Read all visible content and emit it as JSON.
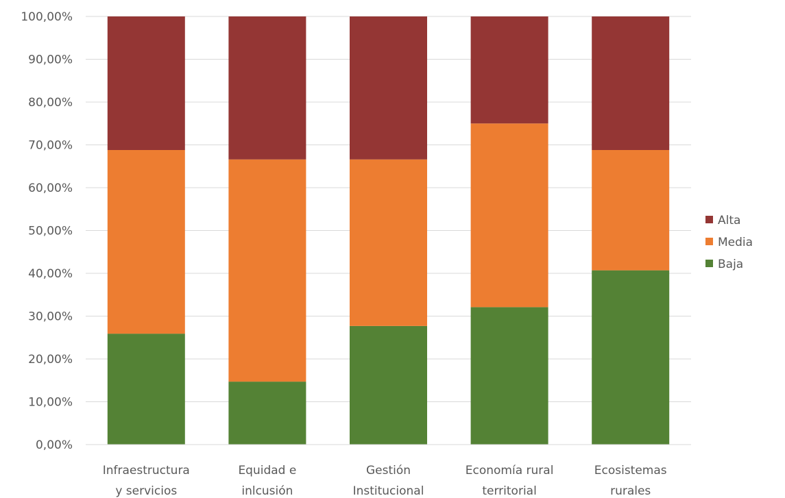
{
  "chart_data": {
    "type": "bar",
    "stacked": true,
    "categories": [
      [
        "Infraestructura",
        "y servicios"
      ],
      [
        "Equidad e",
        "inlcusión"
      ],
      [
        "Gestión",
        "Institucional"
      ],
      [
        "Economía rural",
        "territorial"
      ],
      [
        "Ecosistemas",
        "rurales"
      ]
    ],
    "series": [
      {
        "name": "Baja",
        "color": "#548235",
        "values": [
          25.9,
          14.7,
          27.7,
          32.1,
          40.7
        ]
      },
      {
        "name": "Media",
        "color": "#ED7D31",
        "values": [
          42.9,
          51.9,
          38.9,
          42.9,
          28.1
        ]
      },
      {
        "name": "Alta",
        "color": "#943634",
        "values": [
          31.2,
          33.4,
          33.4,
          25.0,
          31.2
        ]
      }
    ],
    "ylim": [
      0,
      100
    ],
    "yticks": [
      "0,00%",
      "10,00%",
      "20,00%",
      "30,00%",
      "40,00%",
      "50,00%",
      "60,00%",
      "70,00%",
      "80,00%",
      "90,00%",
      "100,00%"
    ],
    "grid": true,
    "legend": {
      "position": "right",
      "order": [
        "Alta",
        "Media",
        "Baja"
      ]
    },
    "gridline_color": "#D9D9D9"
  }
}
